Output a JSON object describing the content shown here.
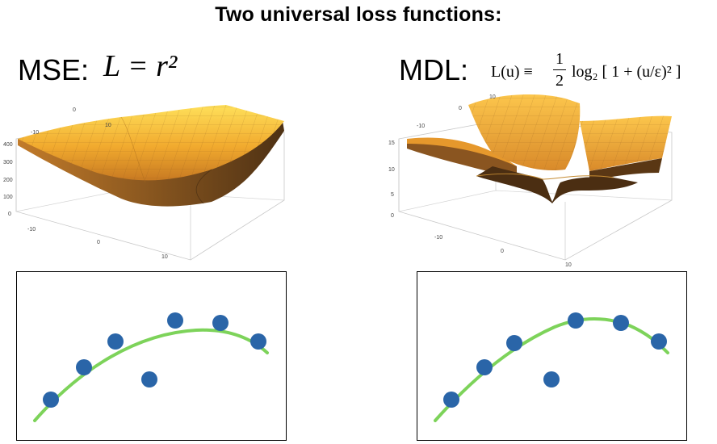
{
  "title": "Two universal loss functions:",
  "left": {
    "name": "MSE:",
    "equation": "L = r²",
    "surface_ticks": {
      "z": [
        "400",
        "300",
        "200",
        "100",
        "0"
      ],
      "y_back": [
        "-10",
        "0",
        "10"
      ],
      "x_front": [
        "-10",
        "0",
        "10"
      ]
    }
  },
  "right": {
    "name": "MDL:",
    "equation_lhs": "L(u) ≡",
    "equation_rhs": "log₂ [ 1 + (u/ε)² ]",
    "surface_ticks": {
      "z": [
        "15",
        "10",
        "5",
        "0"
      ],
      "y_back": [
        "-10",
        "0",
        "10"
      ],
      "x_front": [
        "-10",
        "0",
        "10"
      ]
    }
  },
  "colors": {
    "point": "#2a65a8",
    "curve": "#7dd35a",
    "surface_light": "#f6c444",
    "surface_dark": "#6b4620"
  }
}
